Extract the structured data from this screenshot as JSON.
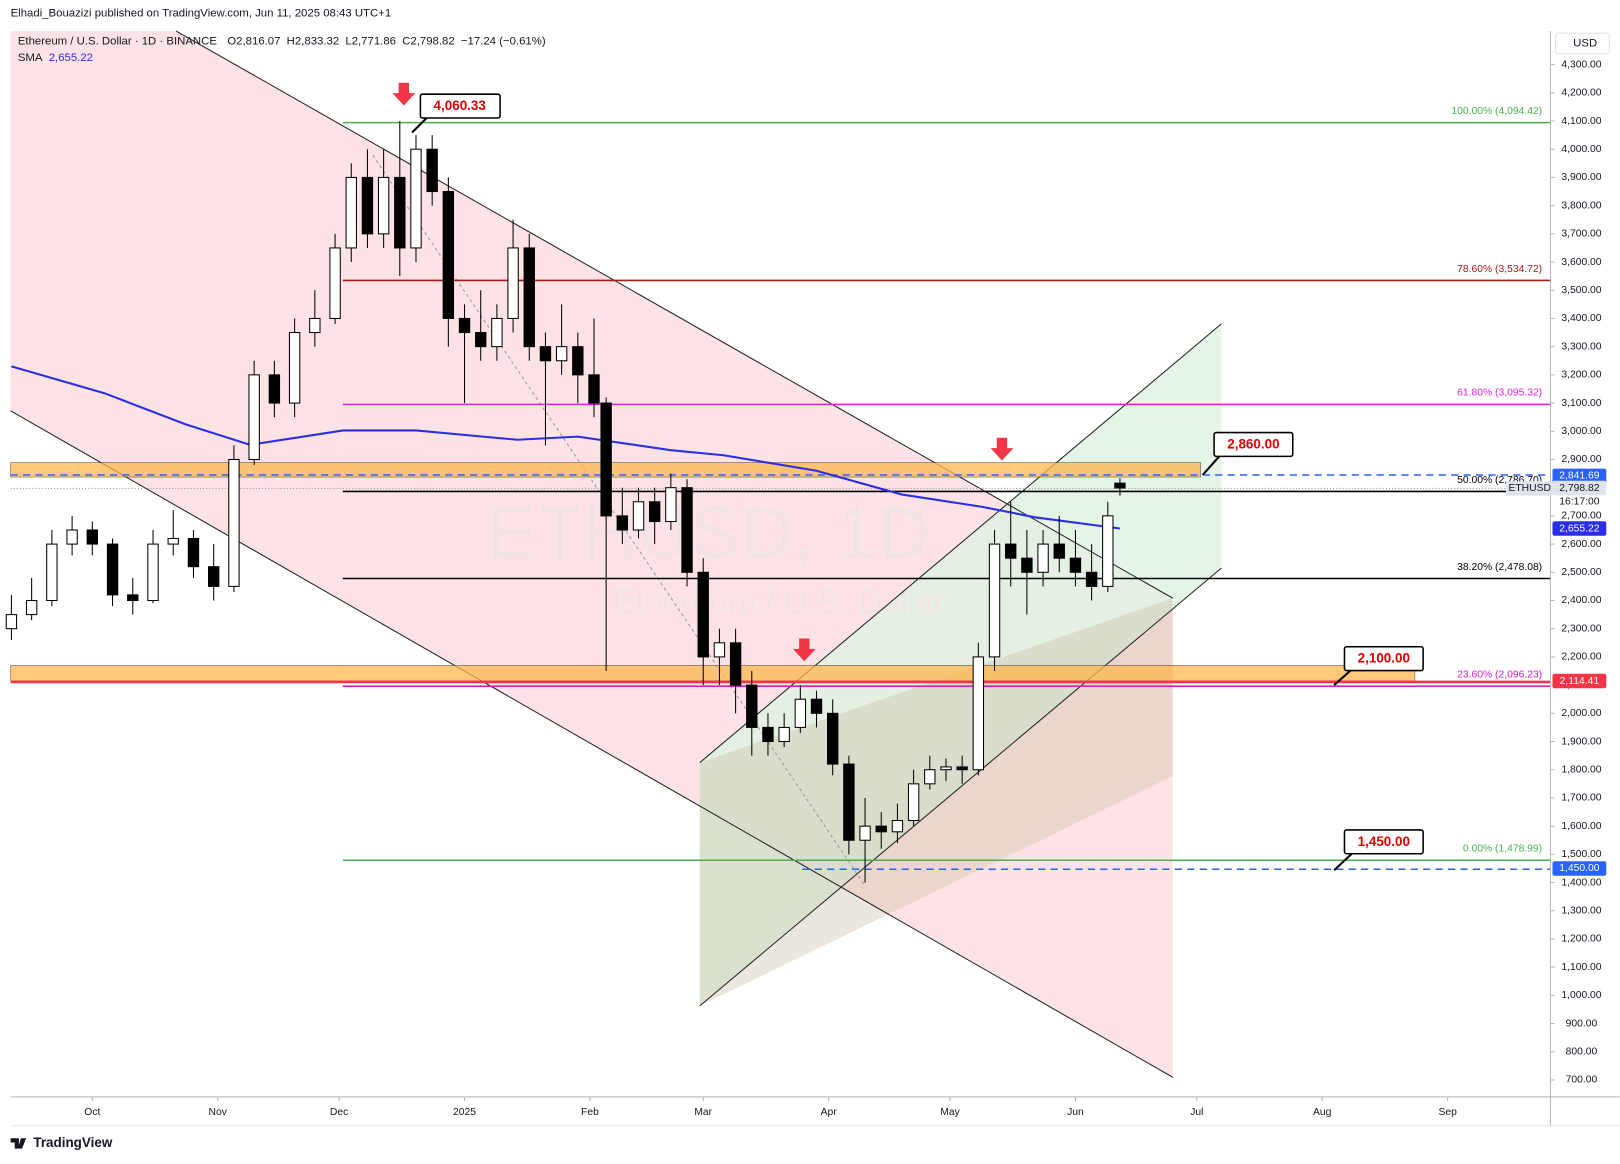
{
  "header": "Elhadi_Bouazizi published on TradingView.com, Jun 11, 2025 08:43 UTC+1",
  "footer": "TradingView",
  "chart_data": {
    "type": "candlestick",
    "symbol": "Ethereum / U.S. Dollar · 1D · BINANCE",
    "legend": [
      {
        "key": "O",
        "label": "2,816.07"
      },
      {
        "key": "H",
        "label": "2,833.32"
      },
      {
        "key": "L",
        "label": "2,771.86"
      },
      {
        "key": "C",
        "label": "2,798.82"
      }
    ],
    "change": "−17.24 (−0.61%)",
    "watermark": "ETHUSD, 1D",
    "watermark_sub": "Ethereum / U.S. Dollar",
    "currency": "USD",
    "up_color": "#ffffff",
    "down_color": "#000000",
    "candles": [
      {
        "x": -20,
        "open": 2300,
        "high": 2420,
        "low": 2260,
        "close": 2350
      },
      {
        "x": -15,
        "open": 2350,
        "high": 2480,
        "low": 2330,
        "close": 2400
      },
      {
        "x": -10,
        "open": 2400,
        "high": 2650,
        "low": 2380,
        "close": 2600
      },
      {
        "x": -5,
        "open": 2600,
        "high": 2700,
        "low": 2560,
        "close": 2650
      },
      {
        "x": 0,
        "open": 2650,
        "high": 2680,
        "low": 2560,
        "close": 2600
      },
      {
        "x": 5,
        "open": 2600,
        "high": 2620,
        "low": 2380,
        "close": 2420
      },
      {
        "x": 10,
        "open": 2420,
        "high": 2480,
        "low": 2350,
        "close": 2400
      },
      {
        "x": 15,
        "open": 2400,
        "high": 2650,
        "low": 2390,
        "close": 2600
      },
      {
        "x": 20,
        "open": 2600,
        "high": 2720,
        "low": 2560,
        "close": 2620
      },
      {
        "x": 25,
        "open": 2620,
        "high": 2650,
        "low": 2480,
        "close": 2520
      },
      {
        "x": 30,
        "open": 2520,
        "high": 2600,
        "low": 2400,
        "close": 2450
      },
      {
        "x": 35,
        "open": 2450,
        "high": 2950,
        "low": 2430,
        "close": 2900
      },
      {
        "x": 40,
        "open": 2900,
        "high": 3250,
        "low": 2880,
        "close": 3200
      },
      {
        "x": 45,
        "open": 3200,
        "high": 3250,
        "low": 3050,
        "close": 3100
      },
      {
        "x": 50,
        "open": 3100,
        "high": 3400,
        "low": 3050,
        "close": 3350
      },
      {
        "x": 55,
        "open": 3350,
        "high": 3500,
        "low": 3300,
        "close": 3400
      },
      {
        "x": 60,
        "open": 3400,
        "high": 3700,
        "low": 3380,
        "close": 3650
      },
      {
        "x": 64,
        "open": 3650,
        "high": 3950,
        "low": 3600,
        "close": 3900
      },
      {
        "x": 68,
        "open": 3900,
        "high": 4000,
        "low": 3650,
        "close": 3700
      },
      {
        "x": 72,
        "open": 3700,
        "high": 4000,
        "low": 3650,
        "close": 3900
      },
      {
        "x": 76,
        "open": 3900,
        "high": 4100,
        "low": 3550,
        "close": 3650
      },
      {
        "x": 80,
        "open": 3650,
        "high": 4050,
        "low": 3600,
        "close": 4000
      },
      {
        "x": 84,
        "open": 4000,
        "high": 4050,
        "low": 3800,
        "close": 3850
      },
      {
        "x": 88,
        "open": 3850,
        "high": 3900,
        "low": 3300,
        "close": 3400
      },
      {
        "x": 92,
        "open": 3400,
        "high": 3450,
        "low": 3100,
        "close": 3350
      },
      {
        "x": 96,
        "open": 3350,
        "high": 3500,
        "low": 3250,
        "close": 3300
      },
      {
        "x": 100,
        "open": 3300,
        "high": 3450,
        "low": 3250,
        "close": 3400
      },
      {
        "x": 104,
        "open": 3400,
        "high": 3750,
        "low": 3350,
        "close": 3650
      },
      {
        "x": 108,
        "open": 3650,
        "high": 3700,
        "low": 3250,
        "close": 3300
      },
      {
        "x": 112,
        "open": 3300,
        "high": 3350,
        "low": 2950,
        "close": 3250
      },
      {
        "x": 116,
        "open": 3250,
        "high": 3450,
        "low": 3200,
        "close": 3300
      },
      {
        "x": 120,
        "open": 3300,
        "high": 3350,
        "low": 3100,
        "close": 3200
      },
      {
        "x": 124,
        "open": 3200,
        "high": 3400,
        "low": 3050,
        "close": 3100
      },
      {
        "x": 127,
        "open": 3100,
        "high": 3120,
        "low": 2150,
        "close": 2700
      },
      {
        "x": 131,
        "open": 2700,
        "high": 2800,
        "low": 2600,
        "close": 2650
      },
      {
        "x": 135,
        "open": 2650,
        "high": 2800,
        "low": 2620,
        "close": 2750
      },
      {
        "x": 139,
        "open": 2750,
        "high": 2800,
        "low": 2600,
        "close": 2680
      },
      {
        "x": 143,
        "open": 2680,
        "high": 2850,
        "low": 2650,
        "close": 2800
      },
      {
        "x": 147,
        "open": 2800,
        "high": 2830,
        "low": 2450,
        "close": 2500
      },
      {
        "x": 151,
        "open": 2500,
        "high": 2550,
        "low": 2100,
        "close": 2200
      },
      {
        "x": 155,
        "open": 2200,
        "high": 2300,
        "low": 2100,
        "close": 2250
      },
      {
        "x": 159,
        "open": 2250,
        "high": 2300,
        "low": 2000,
        "close": 2100
      },
      {
        "x": 163,
        "open": 2100,
        "high": 2150,
        "low": 1850,
        "close": 1950
      },
      {
        "x": 167,
        "open": 1950,
        "high": 2000,
        "low": 1850,
        "close": 1900
      },
      {
        "x": 171,
        "open": 1900,
        "high": 2000,
        "low": 1880,
        "close": 1950
      },
      {
        "x": 175,
        "open": 1950,
        "high": 2100,
        "low": 1930,
        "close": 2050
      },
      {
        "x": 179,
        "open": 2050,
        "high": 2080,
        "low": 1950,
        "close": 2000
      },
      {
        "x": 183,
        "open": 2000,
        "high": 2050,
        "low": 1780,
        "close": 1820
      },
      {
        "x": 187,
        "open": 1820,
        "high": 1850,
        "low": 1500,
        "close": 1550
      },
      {
        "x": 191,
        "open": 1550,
        "high": 1700,
        "low": 1400,
        "close": 1600
      },
      {
        "x": 195,
        "open": 1600,
        "high": 1650,
        "low": 1520,
        "close": 1580
      },
      {
        "x": 199,
        "open": 1580,
        "high": 1680,
        "low": 1540,
        "close": 1620
      },
      {
        "x": 203,
        "open": 1620,
        "high": 1800,
        "low": 1600,
        "close": 1750
      },
      {
        "x": 207,
        "open": 1750,
        "high": 1850,
        "low": 1730,
        "close": 1800
      },
      {
        "x": 211,
        "open": 1800,
        "high": 1840,
        "low": 1760,
        "close": 1810
      },
      {
        "x": 215,
        "open": 1810,
        "high": 1850,
        "low": 1750,
        "close": 1800
      },
      {
        "x": 219,
        "open": 1800,
        "high": 2250,
        "low": 1780,
        "close": 2200
      },
      {
        "x": 223,
        "open": 2200,
        "high": 2650,
        "low": 2150,
        "close": 2600
      },
      {
        "x": 227,
        "open": 2600,
        "high": 2750,
        "low": 2450,
        "close": 2550
      },
      {
        "x": 231,
        "open": 2550,
        "high": 2650,
        "low": 2350,
        "close": 2500
      },
      {
        "x": 235,
        "open": 2500,
        "high": 2650,
        "low": 2450,
        "close": 2600
      },
      {
        "x": 239,
        "open": 2600,
        "high": 2700,
        "low": 2500,
        "close": 2550
      },
      {
        "x": 243,
        "open": 2550,
        "high": 2650,
        "low": 2450,
        "close": 2500
      },
      {
        "x": 247,
        "open": 2500,
        "high": 2600,
        "low": 2400,
        "close": 2450
      },
      {
        "x": 251,
        "open": 2450,
        "high": 2750,
        "low": 2430,
        "close": 2700
      },
      {
        "x": 254,
        "open": 2816.07,
        "high": 2833.32,
        "low": 2771.86,
        "close": 2798.82
      }
    ],
    "sma": {
      "name": "SMA",
      "label": "2,655.22",
      "color": "#2a2ee8",
      "x": [
        -20,
        3,
        23,
        39,
        62,
        80,
        105,
        120,
        143,
        156,
        179,
        200,
        220,
        233,
        254
      ],
      "values": [
        3230,
        3135,
        3025,
        2952,
        3003,
        3003,
        2970,
        2981,
        2933,
        2915,
        2860,
        2776,
        2732,
        2695,
        2655.22
      ]
    },
    "fib_levels": [
      {
        "value": 4094.42,
        "label": "100.00% (4,094.42)",
        "color": "#4caf50"
      },
      {
        "value": 3534.72,
        "label": "78.60% (3,534.72)",
        "color": "#a11a1a"
      },
      {
        "value": 3095.32,
        "label": "61.80% (3,095.32)",
        "color": "#e21ee6"
      },
      {
        "value": 2786.7,
        "label": "50.00% (2,786.70)",
        "color": "#000000"
      },
      {
        "value": 2478.08,
        "label": "38.20% (2,478.08)",
        "color": "#000000"
      },
      {
        "value": 2096.23,
        "label": "23.60% (2,096.23)",
        "color": "#d81bc8"
      },
      {
        "value": 1478.99,
        "label": "0.00% (1,478.99)",
        "color": "#4caf50"
      }
    ],
    "price_badges": [
      {
        "value": 2841.69,
        "label": "2,841.69",
        "color": "#2962ff",
        "text_color": "#ffffff"
      },
      {
        "value": 2798.82,
        "label": "2,798.82",
        "color": "#e0e3eb",
        "text_color": "#131722"
      },
      {
        "value": 2655.22,
        "label": "2,655.22",
        "color": "#2a2ee8",
        "text_color": "#ffffff"
      },
      {
        "value": 2114.41,
        "label": "2,114.41",
        "color": "#f23645",
        "text_color": "#ffffff"
      },
      {
        "value": 1450,
        "label": "1,450.00",
        "color": "#2962ff",
        "text_color": "#ffffff"
      }
    ],
    "ticker_tag": "ETHUSD",
    "countdown": "16:17:00",
    "callouts": [
      {
        "value": 4060.33,
        "label": "4,060.33"
      },
      {
        "value": 2860,
        "label": "2,860.00"
      },
      {
        "value": 2100,
        "label": "2,100.00"
      },
      {
        "value": 1450,
        "label": "1,450.00"
      }
    ],
    "xlim": [
      -20.2,
      360.4
    ],
    "xticks": [
      {
        "value": 0,
        "label": "Oct"
      },
      {
        "value": 31,
        "label": "Nov"
      },
      {
        "value": 61,
        "label": "Dec"
      },
      {
        "value": 92,
        "label": "2025"
      },
      {
        "value": 123,
        "label": "Feb"
      },
      {
        "value": 151,
        "label": "Mar"
      },
      {
        "value": 182,
        "label": "Apr"
      },
      {
        "value": 212,
        "label": "May"
      },
      {
        "value": 243,
        "label": "Jun"
      },
      {
        "value": 273,
        "label": "Jul"
      },
      {
        "value": 304,
        "label": "Aug"
      },
      {
        "value": 335,
        "label": "Sep"
      }
    ],
    "ylim": [
      640,
      4419
    ],
    "yticks": [
      {
        "value": 700,
        "label": "700.00"
      },
      {
        "value": 800,
        "label": "800.00"
      },
      {
        "value": 900,
        "label": "900.00"
      },
      {
        "value": 1000,
        "label": "1,000.00"
      },
      {
        "value": 1100,
        "label": "1,100.00"
      },
      {
        "value": 1200,
        "label": "1,200.00"
      },
      {
        "value": 1300,
        "label": "1,300.00"
      },
      {
        "value": 1400,
        "label": "1,400.00"
      },
      {
        "value": 1500,
        "label": "1,500.00"
      },
      {
        "value": 1600,
        "label": "1,600.00"
      },
      {
        "value": 1700,
        "label": "1,700.00"
      },
      {
        "value": 1800,
        "label": "1,800.00"
      },
      {
        "value": 1900,
        "label": "1,900.00"
      },
      {
        "value": 2000,
        "label": "2,000.00"
      },
      {
        "value": 2100,
        "label": "2,100.00"
      },
      {
        "value": 2200,
        "label": "2,200.00"
      },
      {
        "value": 2300,
        "label": "2,300.00"
      },
      {
        "value": 2400,
        "label": "2,400.00"
      },
      {
        "value": 2500,
        "label": "2,500.00"
      },
      {
        "value": 2600,
        "label": "2,600.00"
      },
      {
        "value": 2700,
        "label": "2,700.00"
      },
      {
        "value": 2800,
        "label": "2,800.00"
      },
      {
        "value": 2900,
        "label": "2,900.00"
      },
      {
        "value": 3000,
        "label": "3,000.00"
      },
      {
        "value": 3100,
        "label": "3,100.00"
      },
      {
        "value": 3200,
        "label": "3,200.00"
      },
      {
        "value": 3300,
        "label": "3,300.00"
      },
      {
        "value": 3400,
        "label": "3,400.00"
      },
      {
        "value": 3500,
        "label": "3,500.00"
      },
      {
        "value": 3600,
        "label": "3,600.00"
      },
      {
        "value": 3700,
        "label": "3,700.00"
      },
      {
        "value": 3800,
        "label": "3,800.00"
      },
      {
        "value": 3900,
        "label": "3,900.00"
      },
      {
        "value": 4000,
        "label": "4,000.00"
      },
      {
        "value": 4100,
        "label": "4,100.00"
      },
      {
        "value": 4200,
        "label": "4,200.00"
      },
      {
        "value": 4300,
        "label": "4,300.00"
      }
    ]
  }
}
